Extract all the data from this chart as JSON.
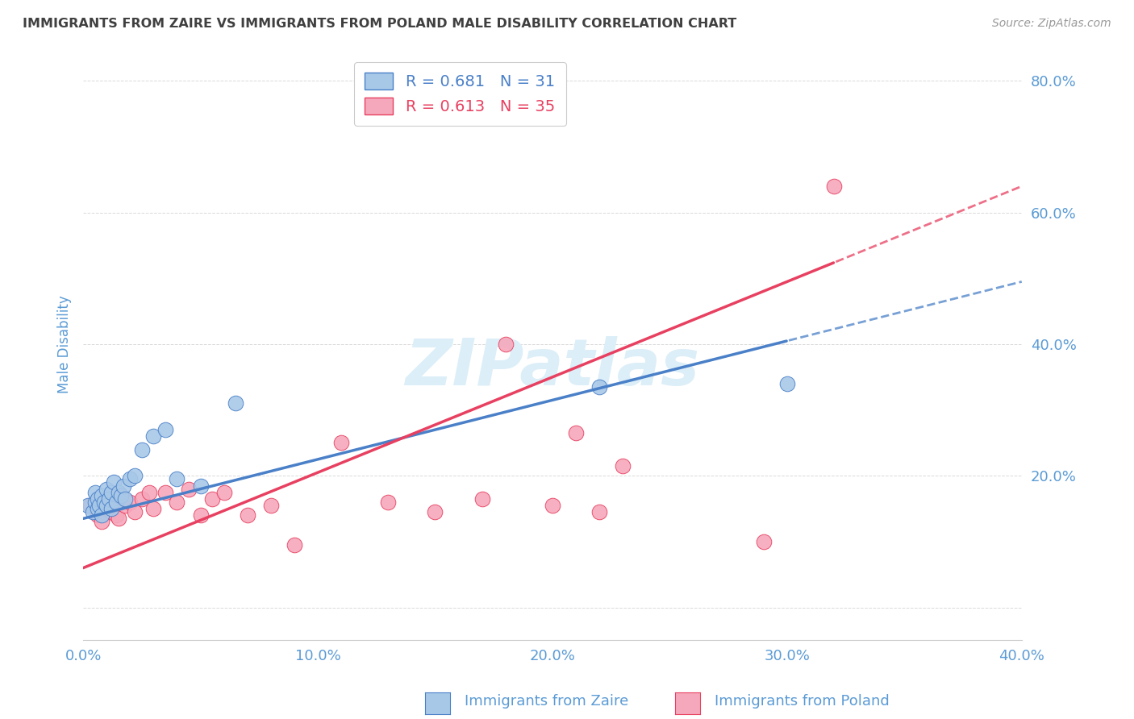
{
  "title": "IMMIGRANTS FROM ZAIRE VS IMMIGRANTS FROM POLAND MALE DISABILITY CORRELATION CHART",
  "source": "Source: ZipAtlas.com",
  "ylabel": "Male Disability",
  "xlim": [
    0.0,
    0.4
  ],
  "ylim": [
    -0.05,
    0.85
  ],
  "ytick_vals": [
    0.0,
    0.2,
    0.4,
    0.6,
    0.8
  ],
  "xtick_vals": [
    0.0,
    0.1,
    0.2,
    0.3,
    0.4
  ],
  "zaire_color": "#a8c8e8",
  "poland_color": "#f5a8bc",
  "zaire_line_color": "#4a80c8",
  "poland_line_color": "#e84060",
  "R_zaire": 0.681,
  "N_zaire": 31,
  "R_poland": 0.613,
  "N_poland": 35,
  "legend_label_zaire": "Immigrants from Zaire",
  "legend_label_poland": "Immigrants from Poland",
  "background_color": "#ffffff",
  "grid_color": "#d0d0d0",
  "title_color": "#404040",
  "tick_label_color": "#5b9bd5",
  "watermark_color": "#dceef8",
  "zaire_x": [
    0.002,
    0.004,
    0.005,
    0.005,
    0.006,
    0.006,
    0.007,
    0.008,
    0.008,
    0.009,
    0.01,
    0.01,
    0.011,
    0.012,
    0.012,
    0.013,
    0.014,
    0.015,
    0.016,
    0.017,
    0.018,
    0.02,
    0.022,
    0.025,
    0.03,
    0.035,
    0.04,
    0.05,
    0.065,
    0.22,
    0.3
  ],
  "zaire_y": [
    0.155,
    0.145,
    0.16,
    0.175,
    0.15,
    0.165,
    0.155,
    0.14,
    0.17,
    0.16,
    0.155,
    0.18,
    0.165,
    0.15,
    0.175,
    0.19,
    0.16,
    0.175,
    0.17,
    0.185,
    0.165,
    0.195,
    0.2,
    0.24,
    0.26,
    0.27,
    0.195,
    0.185,
    0.31,
    0.335,
    0.34
  ],
  "poland_x": [
    0.003,
    0.006,
    0.008,
    0.01,
    0.012,
    0.013,
    0.014,
    0.015,
    0.016,
    0.018,
    0.02,
    0.022,
    0.025,
    0.028,
    0.03,
    0.035,
    0.04,
    0.045,
    0.05,
    0.055,
    0.06,
    0.07,
    0.08,
    0.09,
    0.11,
    0.13,
    0.15,
    0.17,
    0.18,
    0.2,
    0.21,
    0.22,
    0.23,
    0.29,
    0.32
  ],
  "poland_y": [
    0.155,
    0.14,
    0.13,
    0.15,
    0.145,
    0.16,
    0.14,
    0.135,
    0.17,
    0.155,
    0.16,
    0.145,
    0.165,
    0.175,
    0.15,
    0.175,
    0.16,
    0.18,
    0.14,
    0.165,
    0.175,
    0.14,
    0.155,
    0.095,
    0.25,
    0.16,
    0.145,
    0.165,
    0.4,
    0.155,
    0.265,
    0.145,
    0.215,
    0.1,
    0.64
  ],
  "zaire_slope": 0.9,
  "zaire_intercept": 0.135,
  "poland_slope": 1.45,
  "poland_intercept": 0.06
}
